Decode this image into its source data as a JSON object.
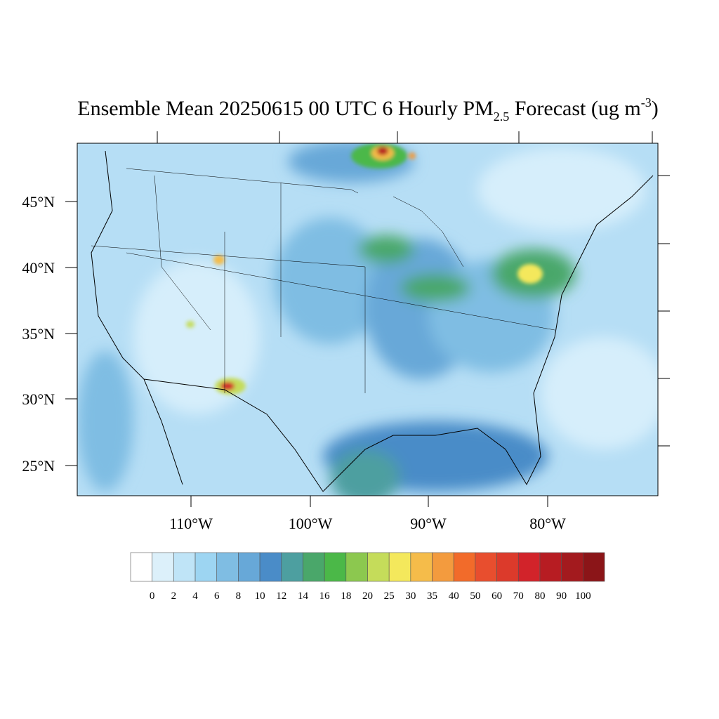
{
  "title": {
    "main": "Ensemble Mean 20250615 00 UTC 6 Hourly PM",
    "subscript": "2.5",
    "middle": " Forecast (ug m",
    "superscript": "-3",
    "end": ")"
  },
  "lat_labels": [
    "45°N",
    "40°N",
    "35°N",
    "30°N",
    "25°N"
  ],
  "lon_labels": [
    "110°W",
    "100°W",
    "90°W",
    "80°W"
  ],
  "colorbar": {
    "levels": [
      0,
      2,
      4,
      6,
      8,
      10,
      12,
      14,
      16,
      18,
      20,
      25,
      30,
      35,
      40,
      50,
      60,
      70,
      80,
      90,
      100
    ],
    "colors": [
      "#ffffff",
      "#dcf0fa",
      "#bfe4f7",
      "#9dd5f2",
      "#7fbde3",
      "#67a8d8",
      "#4a8cc8",
      "#4d9fa0",
      "#4aa76a",
      "#4bb848",
      "#8cc84f",
      "#c5dc5a",
      "#f4e85c",
      "#f5bc4a",
      "#f39b3e",
      "#f26b2a",
      "#e84e2e",
      "#dc3a2b",
      "#d2232a",
      "#b71c22",
      "#a31a1e",
      "#8b1518"
    ]
  }
}
